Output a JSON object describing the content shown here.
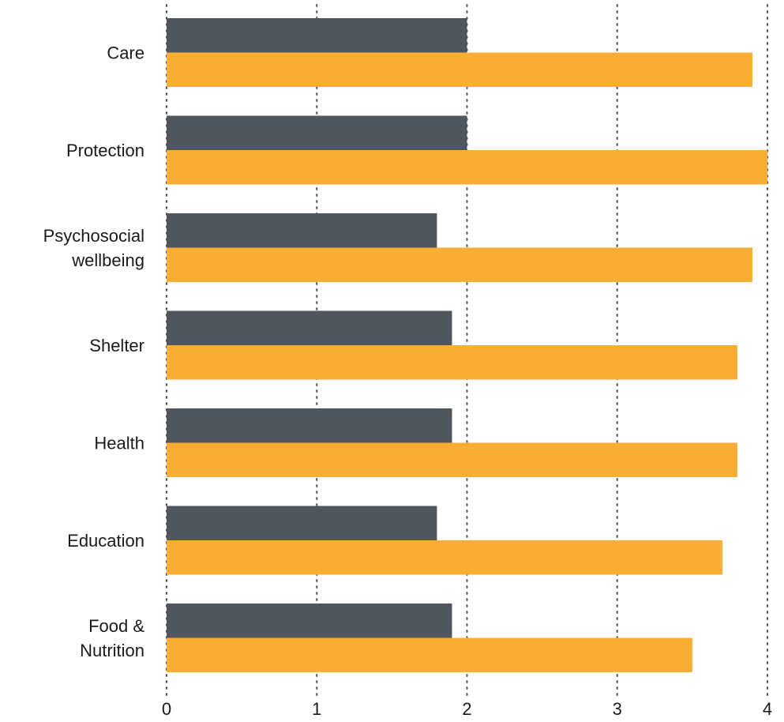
{
  "chart_data": {
    "type": "bar",
    "orientation": "horizontal",
    "categories": [
      [
        "Care"
      ],
      [
        "Protection"
      ],
      [
        "Psychosocial",
        "wellbeing"
      ],
      [
        "Shelter"
      ],
      [
        "Health"
      ],
      [
        "Education"
      ],
      [
        "Food &",
        "Nutrition"
      ]
    ],
    "series": [
      {
        "color": "#4f565d",
        "values": [
          2.0,
          2.0,
          1.8,
          1.9,
          1.9,
          1.8,
          1.9
        ]
      },
      {
        "color": "#f8ae35",
        "values": [
          3.9,
          4.0,
          3.9,
          3.8,
          3.8,
          3.7,
          3.5
        ]
      }
    ],
    "x_ticks": [
      "0",
      "1",
      "2",
      "3",
      "4"
    ],
    "xlim": [
      0,
      4
    ],
    "grid": "vertical-dotted",
    "gridline_color": "#555555",
    "legend": "none"
  }
}
